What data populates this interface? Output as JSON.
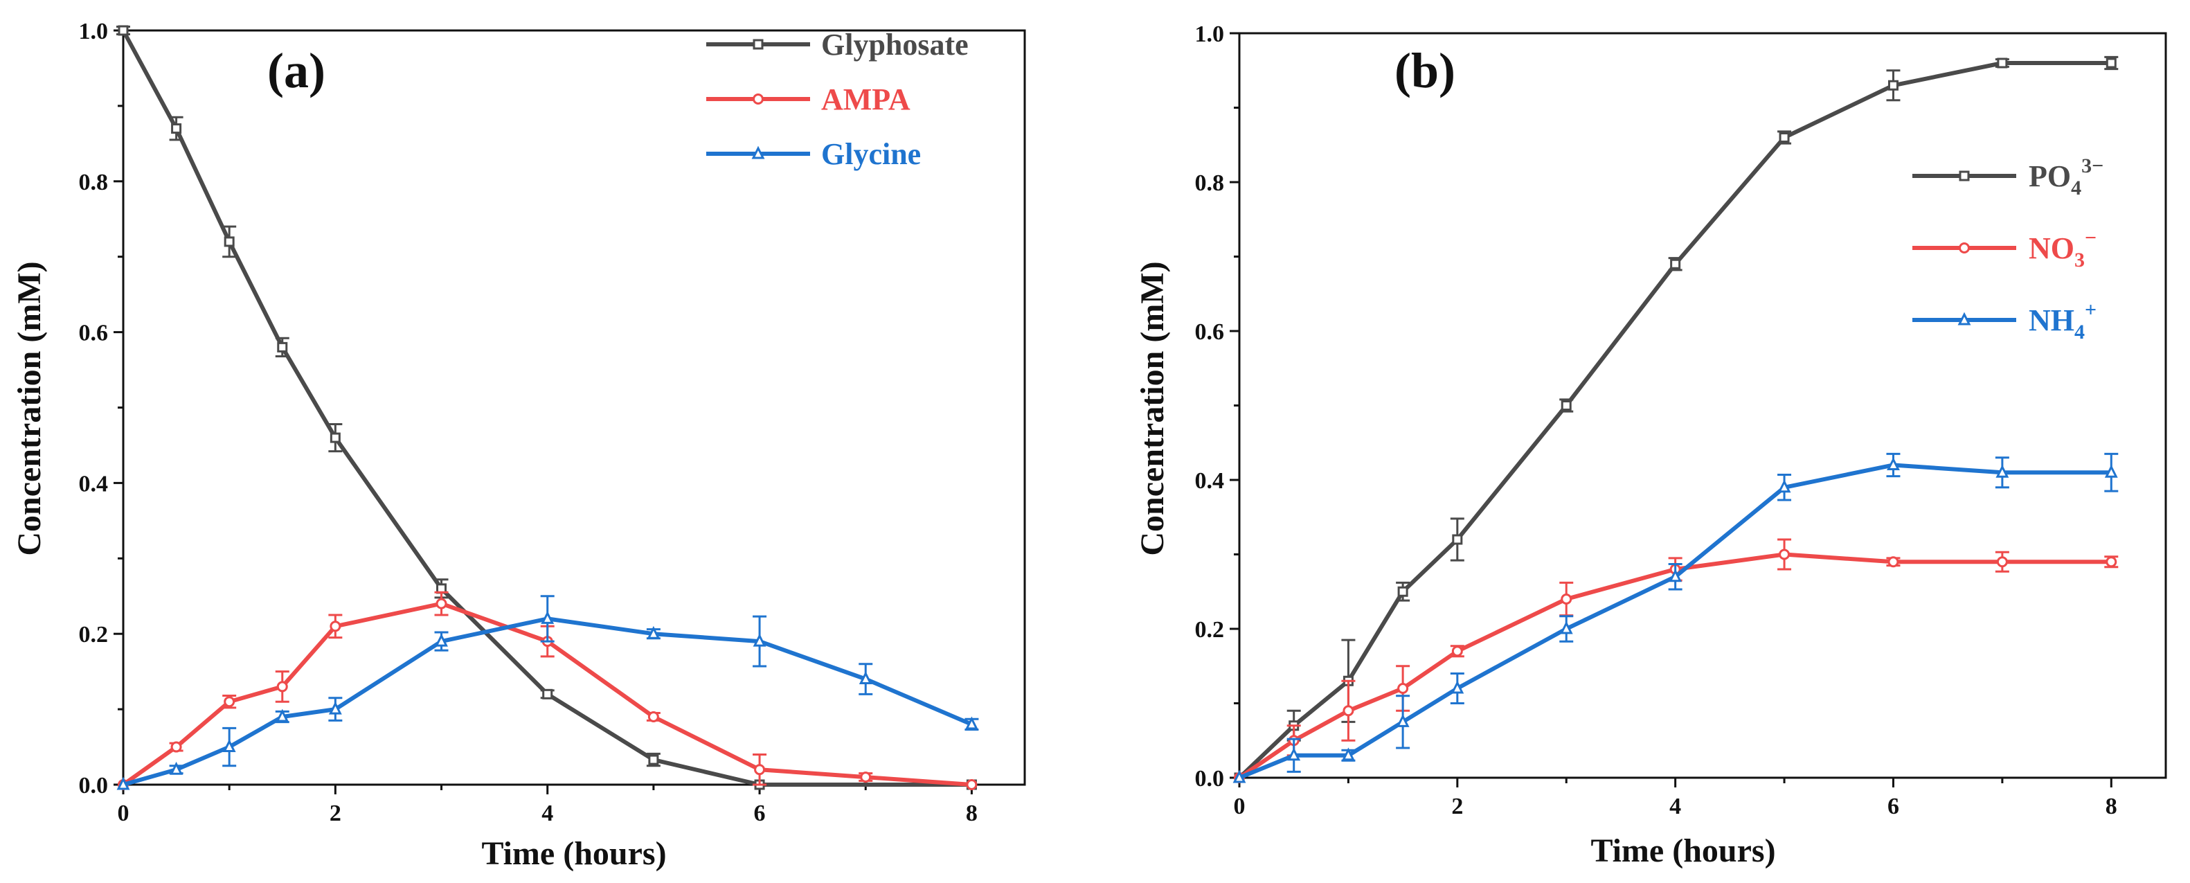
{
  "chart_data": [
    {
      "type": "line",
      "panel_label": "(a)",
      "xlabel": "Time (hours)",
      "ylabel": "Concentration (mM)",
      "xlim": [
        0,
        8.5
      ],
      "ylim": [
        0,
        1.0
      ],
      "xticks": [
        "0",
        "2",
        "4",
        "6",
        "8"
      ],
      "yticks": [
        "0.0",
        "0.2",
        "0.4",
        "0.6",
        "0.8",
        "1.0"
      ],
      "legend_position": "top-right",
      "series": [
        {
          "name": "Glyphosate",
          "sub": "",
          "sup": "",
          "color": "#4a4a4a",
          "marker": "square",
          "x": [
            0,
            0.5,
            1,
            1.5,
            2,
            3,
            4,
            5,
            6,
            8
          ],
          "values": [
            1.0,
            0.87,
            0.72,
            0.58,
            0.46,
            0.26,
            0.12,
            0.033,
            0.0,
            0.0
          ],
          "errors": [
            0.005,
            0.015,
            0.02,
            0.012,
            0.018,
            0.012,
            0.005,
            0.008,
            0.0,
            0.0
          ]
        },
        {
          "name": "AMPA",
          "sub": "",
          "sup": "",
          "color": "#ee4a4a",
          "marker": "circle",
          "x": [
            0,
            0.5,
            1,
            1.5,
            2,
            3,
            4,
            5,
            6,
            7,
            8
          ],
          "values": [
            0.0,
            0.05,
            0.11,
            0.13,
            0.21,
            0.24,
            0.19,
            0.09,
            0.02,
            0.01,
            0.0
          ],
          "errors": [
            0.0,
            0.005,
            0.008,
            0.02,
            0.015,
            0.015,
            0.02,
            0.005,
            0.02,
            0.005,
            0.0
          ]
        },
        {
          "name": "Glycine",
          "sub": "",
          "sup": "",
          "color": "#1f74cf",
          "marker": "triangle",
          "x": [
            0,
            0.5,
            1,
            1.5,
            2,
            3,
            4,
            5,
            6,
            7,
            8
          ],
          "values": [
            0.0,
            0.02,
            0.05,
            0.09,
            0.1,
            0.19,
            0.22,
            0.2,
            0.19,
            0.14,
            0.08
          ],
          "errors": [
            0.0,
            0.005,
            0.025,
            0.007,
            0.015,
            0.012,
            0.03,
            0.006,
            0.033,
            0.02,
            0.007
          ]
        }
      ]
    },
    {
      "type": "line",
      "panel_label": "(b)",
      "xlabel": "Time (hours)",
      "ylabel": "Concentration (mM)",
      "xlim": [
        0,
        8.5
      ],
      "ylim": [
        0,
        1.0
      ],
      "xticks": [
        "0",
        "2",
        "4",
        "6",
        "8"
      ],
      "yticks": [
        "0.0",
        "0.2",
        "0.4",
        "0.6",
        "0.8",
        "1.0"
      ],
      "legend_position": "center-right",
      "series": [
        {
          "name": "PO",
          "sub": "4",
          "sup": "3−",
          "color": "#4a4a4a",
          "marker": "square",
          "x": [
            0,
            0.5,
            1,
            1.5,
            2,
            3,
            4,
            5,
            6,
            7,
            8
          ],
          "values": [
            0.0,
            0.07,
            0.13,
            0.25,
            0.32,
            0.5,
            0.69,
            0.86,
            0.93,
            0.96,
            0.96
          ],
          "errors": [
            0.0,
            0.02,
            0.055,
            0.012,
            0.028,
            0.008,
            0.008,
            0.008,
            0.02,
            0.005,
            0.008
          ]
        },
        {
          "name": "NO",
          "sub": "3",
          "sup": "−",
          "color": "#ee4a4a",
          "marker": "circle",
          "x": [
            0,
            0.5,
            1,
            1.5,
            2,
            3,
            4,
            5,
            6,
            7,
            8
          ],
          "values": [
            0.0,
            0.05,
            0.09,
            0.12,
            0.17,
            0.24,
            0.28,
            0.3,
            0.29,
            0.29,
            0.29
          ],
          "errors": [
            0.0,
            0.02,
            0.04,
            0.03,
            0.007,
            0.022,
            0.015,
            0.02,
            0.005,
            0.013,
            0.007
          ]
        },
        {
          "name": "NH",
          "sub": "4",
          "sup": "+",
          "color": "#1f74cf",
          "marker": "triangle",
          "x": [
            0,
            0.5,
            1,
            1.5,
            2,
            3,
            4,
            5,
            6,
            7,
            8
          ],
          "values": [
            0.0,
            0.03,
            0.03,
            0.075,
            0.12,
            0.2,
            0.27,
            0.39,
            0.42,
            0.41,
            0.41
          ],
          "errors": [
            0.0,
            0.022,
            0.007,
            0.035,
            0.02,
            0.017,
            0.017,
            0.017,
            0.015,
            0.02,
            0.025
          ]
        }
      ]
    }
  ]
}
